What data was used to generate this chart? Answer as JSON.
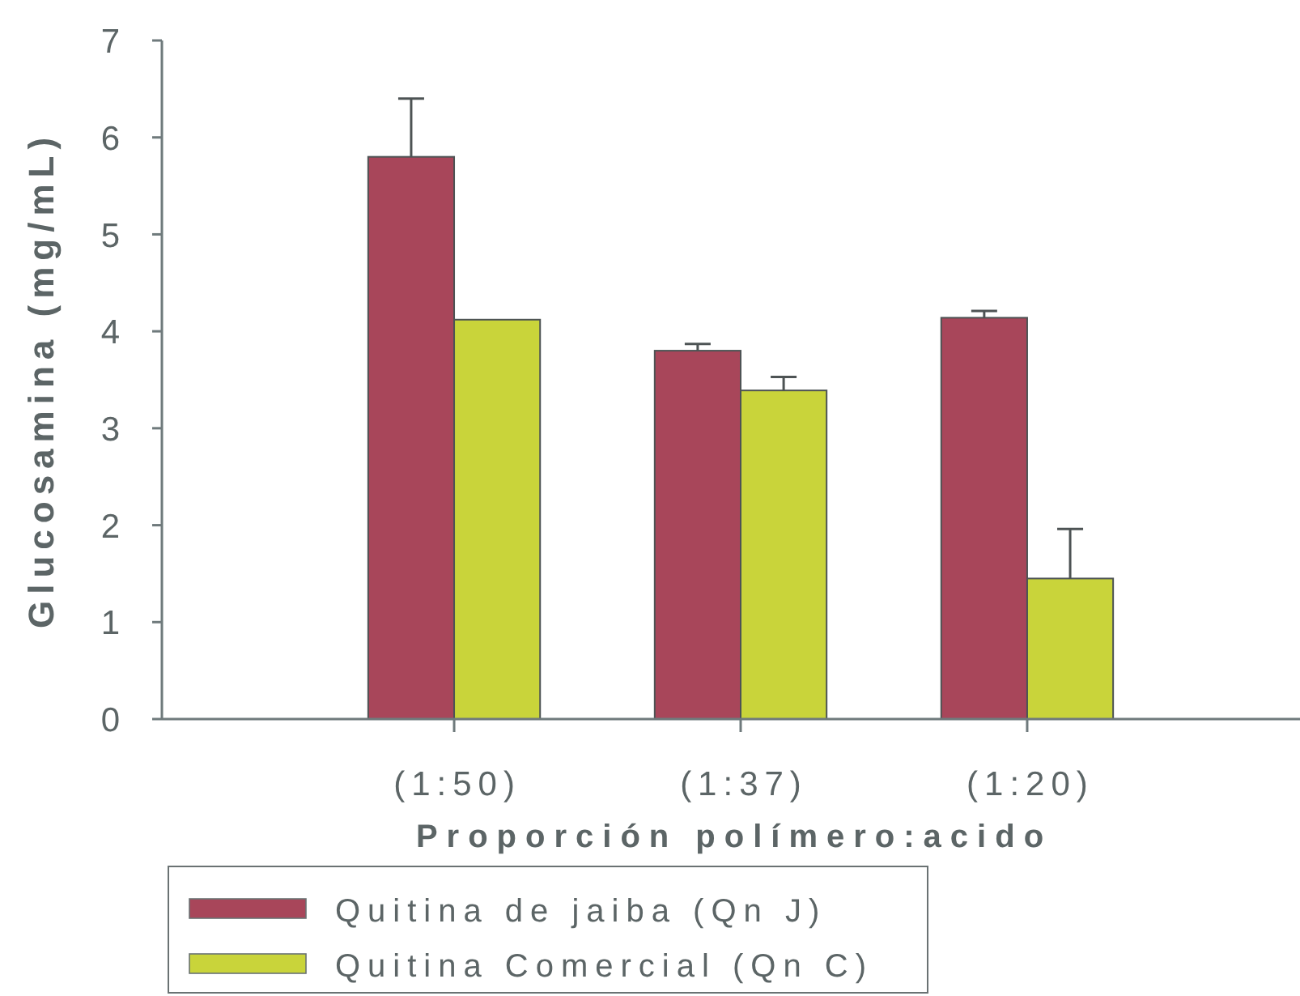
{
  "chart_data": {
    "type": "bar",
    "xlabel": "Proporción polímero:acido",
    "ylabel": "Glucosamina (mg/mL)",
    "categories": [
      "(1:50)",
      "(1:37)",
      "(1:20)"
    ],
    "series": [
      {
        "name": "Quitina de jaiba (Qn J)",
        "color": "#a8465a",
        "values": [
          5.8,
          3.8,
          4.14
        ],
        "errors": [
          [
            5.8,
            6.4
          ],
          [
            3.8,
            3.87
          ],
          [
            4.14,
            4.21
          ]
        ]
      },
      {
        "name": "Quitina Comercial (Qn C)",
        "color": "#c9d43a",
        "values": [
          4.12,
          3.39,
          1.45
        ],
        "errors": [
          null,
          [
            3.39,
            3.53
          ],
          [
            1.45,
            1.96
          ]
        ]
      }
    ],
    "ylim": [
      0,
      7
    ],
    "yticks": [
      0,
      1,
      2,
      3,
      4,
      5,
      6,
      7
    ],
    "legend": "bottom left"
  }
}
